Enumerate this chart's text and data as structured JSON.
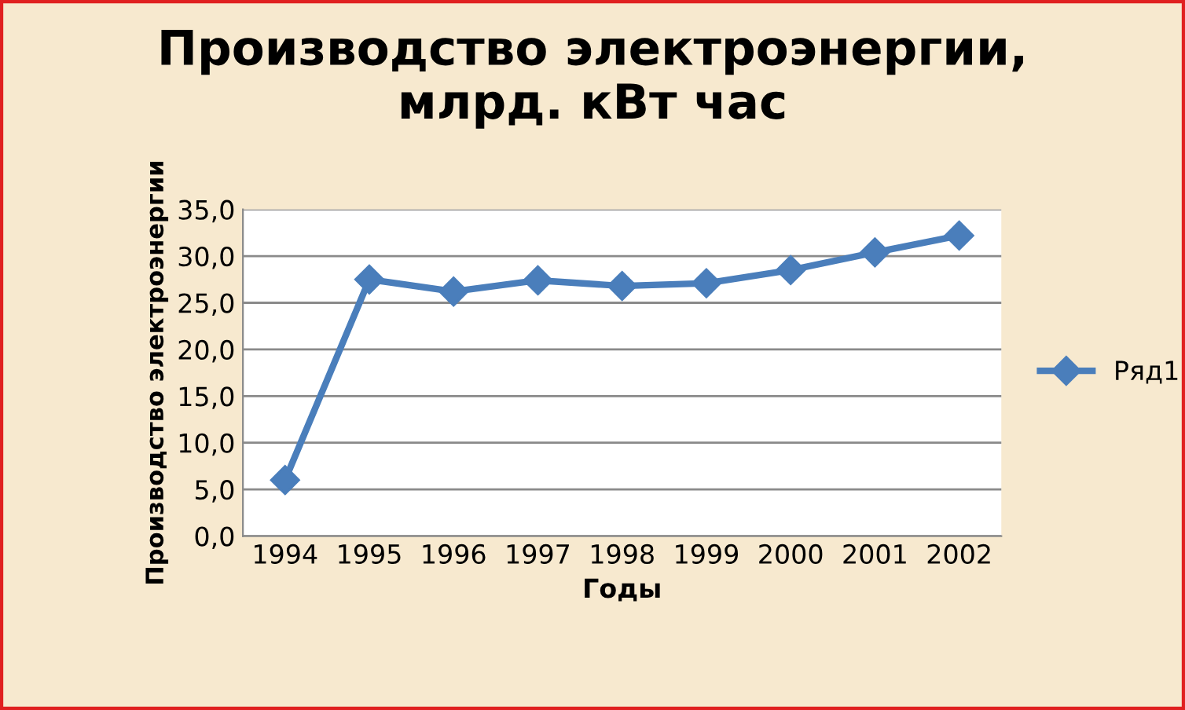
{
  "chart_data": {
    "type": "line",
    "title": "Производство электроэнергии,\nмлрд. кВт час",
    "xlabel": "Годы",
    "ylabel": "Производство электроэнергии",
    "categories": [
      "1994",
      "1995",
      "1996",
      "1997",
      "1998",
      "1999",
      "2000",
      "2001",
      "2002"
    ],
    "series": [
      {
        "name": "Ряд1",
        "color": "#4a7ebb",
        "values": [
          6.0,
          27.5,
          26.2,
          27.4,
          26.8,
          27.1,
          28.5,
          30.4,
          32.2
        ]
      }
    ],
    "ylim": [
      0,
      35
    ],
    "yticks": [
      {
        "value": 0,
        "label": "0,0"
      },
      {
        "value": 5,
        "label": "5,0"
      },
      {
        "value": 10,
        "label": "10,0"
      },
      {
        "value": 15,
        "label": "15,0"
      },
      {
        "value": 20,
        "label": "20,0"
      },
      {
        "value": 25,
        "label": "25,0"
      },
      {
        "value": 30,
        "label": "30,0"
      },
      {
        "value": 35,
        "label": "35,0"
      }
    ],
    "grid": "y",
    "legend": "right",
    "marker": "diamond",
    "line_style": "solid"
  }
}
